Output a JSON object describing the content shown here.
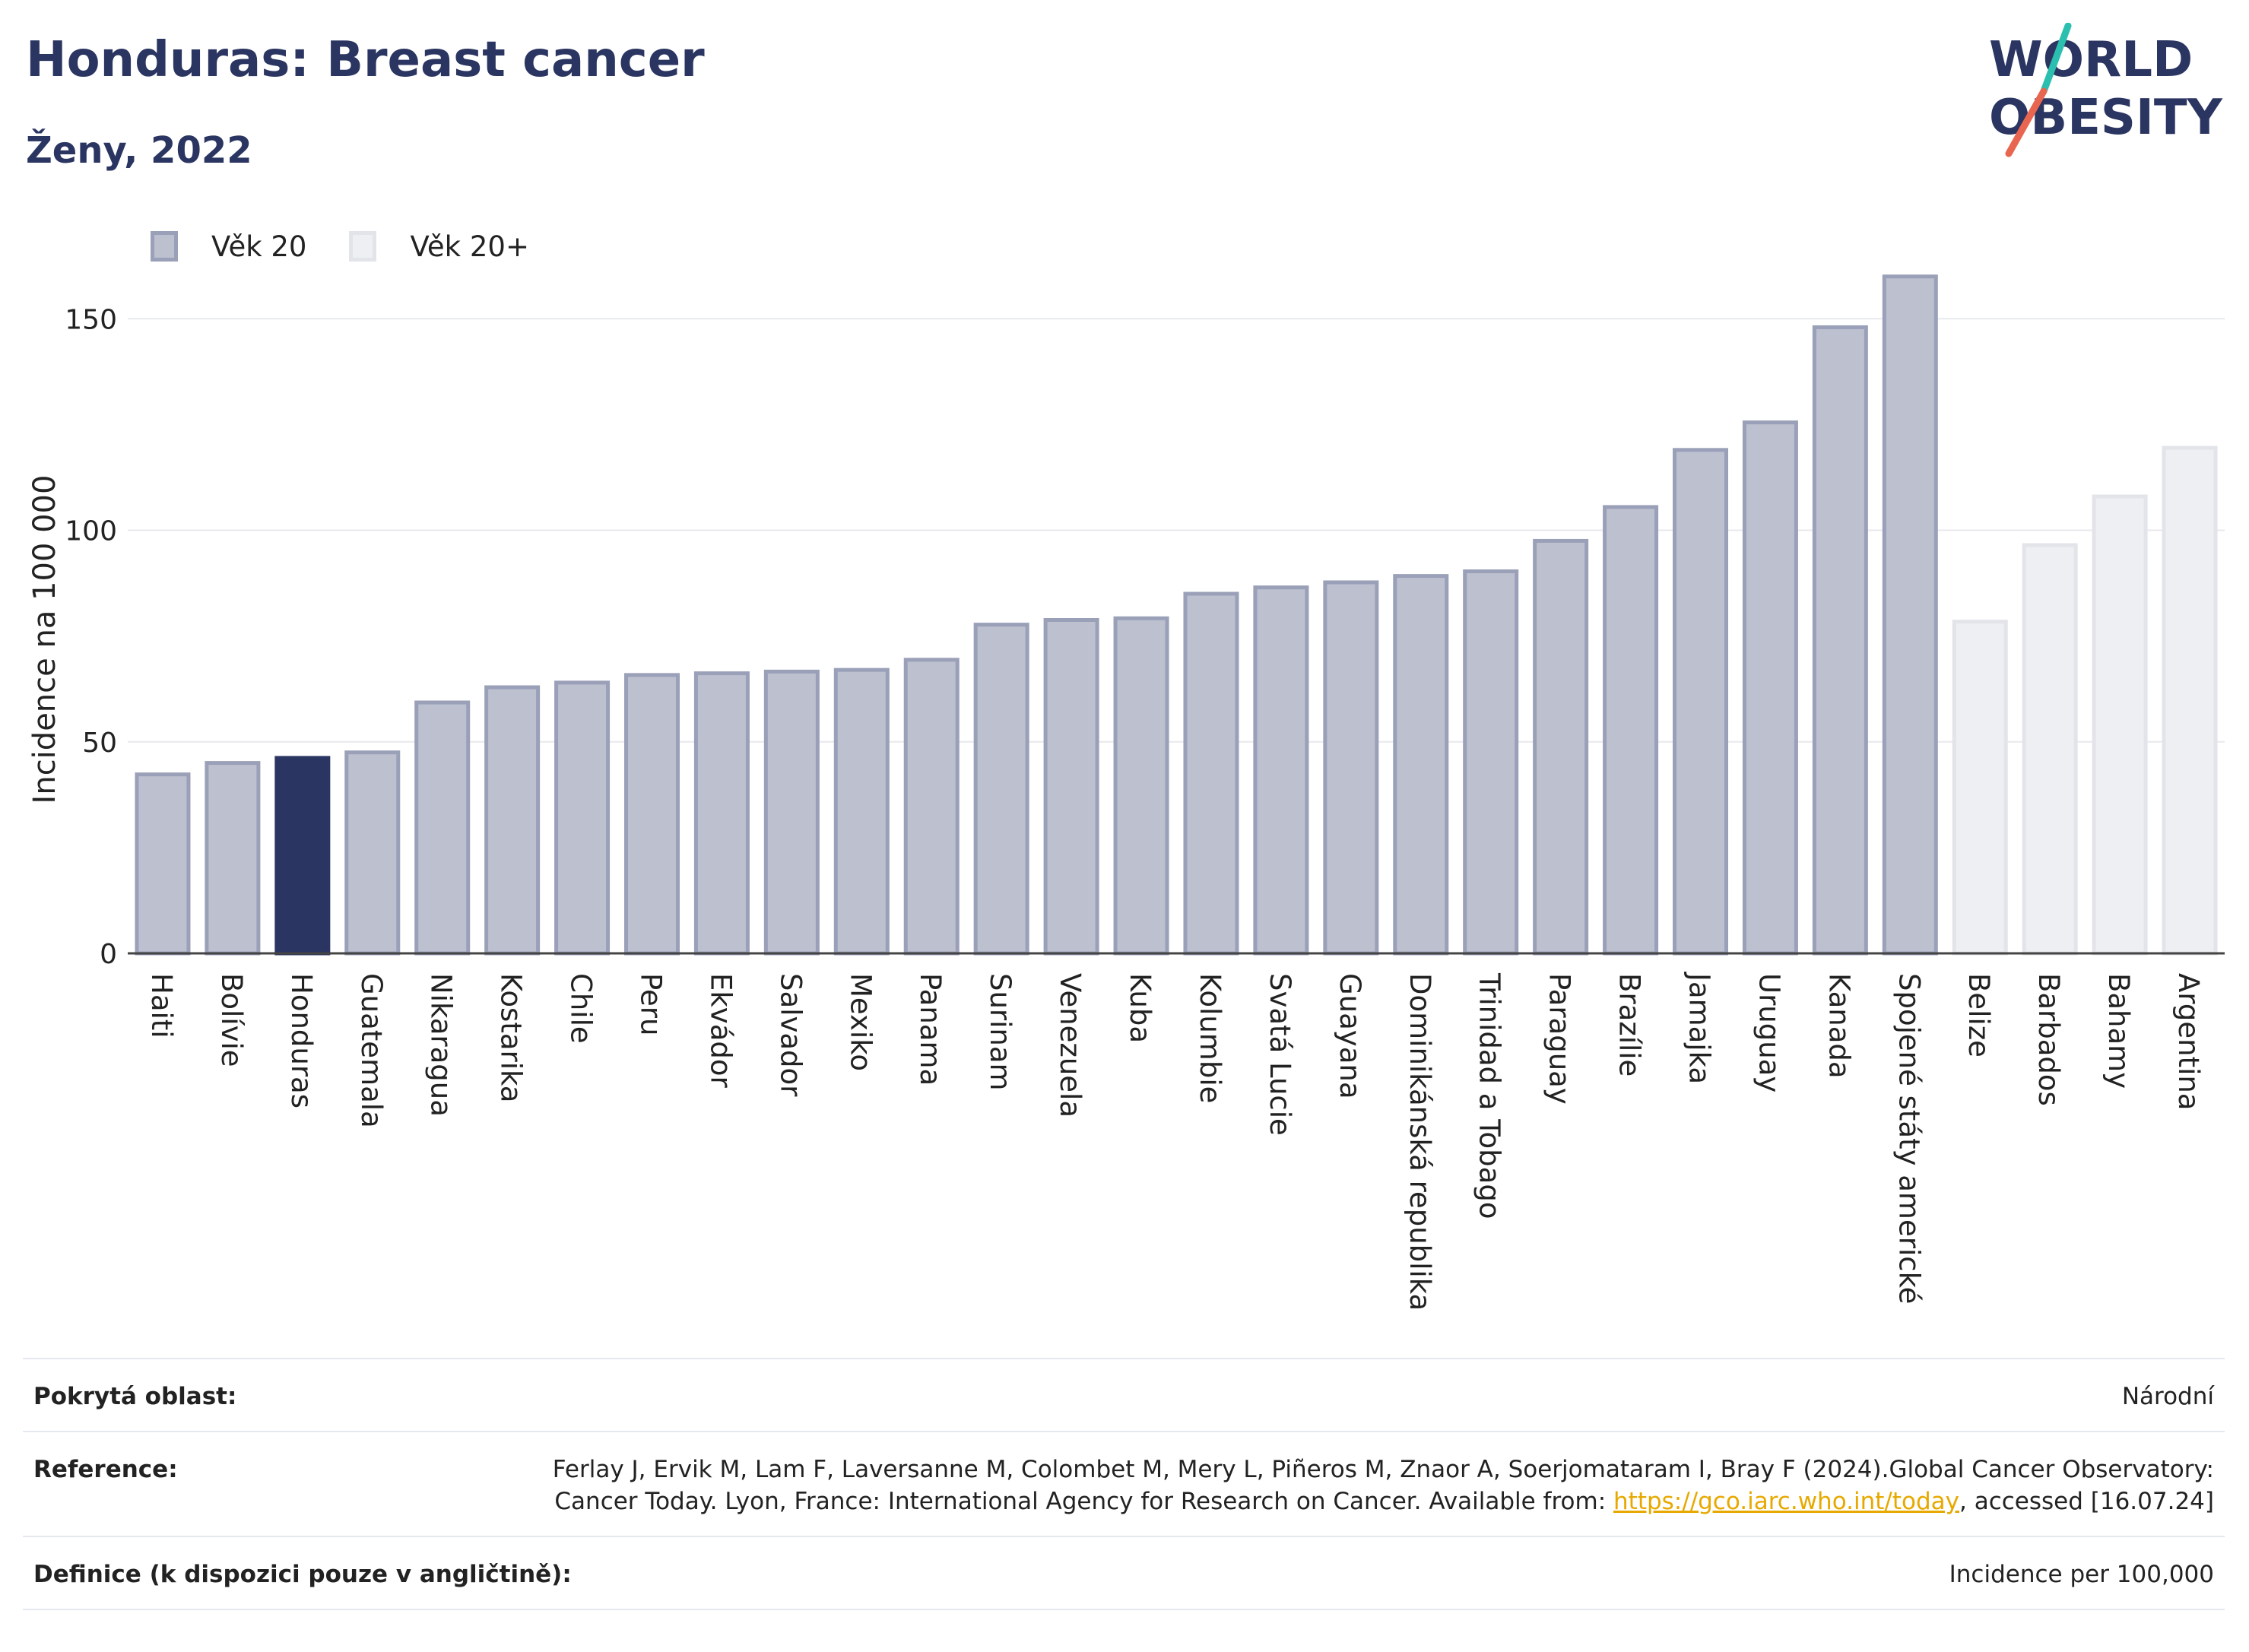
{
  "header": {
    "title": "Honduras: Breast cancer",
    "subtitle": "Ženy, 2022"
  },
  "logo": {
    "line1": "WORLD",
    "line2": "OBESITY",
    "accent_colors": [
      "#2bbfb0",
      "#e8664f"
    ]
  },
  "legend": {
    "items": [
      {
        "label": "Věk 20",
        "fill": "#bcc0cf",
        "stroke": "#9aa0b8"
      },
      {
        "label": "Věk 20+",
        "fill": "#eeeff3",
        "stroke": "#e3e4ea"
      }
    ]
  },
  "chart_data": {
    "type": "bar",
    "ylabel": "Incidence na 100 000",
    "xlabel": "",
    "ylim": [
      0,
      170
    ],
    "yticks": [
      0,
      50,
      100,
      150
    ],
    "grid": true,
    "legend_position": "top-left",
    "highlight": "Honduras",
    "categories": [
      "Haiti",
      "Bolívie",
      "Honduras",
      "Guatemala",
      "Nikaragua",
      "Kostarika",
      "Chile",
      "Peru",
      "Ekvádor",
      "Salvador",
      "Mexiko",
      "Panama",
      "Surinam",
      "Venezuela",
      "Kuba",
      "Kolumbie",
      "Svatá Lucie",
      "Guayana",
      "Dominikánská republika",
      "Trinidad a Tobago",
      "Paraguay",
      "Brazílie",
      "Jamajka",
      "Uruguay",
      "Kanada",
      "Spojené státy americké",
      "Belize",
      "Barbados",
      "Bahamy",
      "Argentina"
    ],
    "values": [
      42.3,
      45.0,
      46.2,
      47.5,
      59.3,
      62.9,
      64.0,
      65.8,
      66.2,
      66.6,
      67.0,
      69.4,
      77.7,
      78.8,
      79.2,
      85.0,
      86.5,
      87.7,
      89.2,
      90.3,
      97.5,
      105.5,
      119.0,
      125.5,
      148.0,
      160.0,
      78.4,
      96.5,
      108.0,
      119.5
    ],
    "age_group": [
      "Věk 20",
      "Věk 20",
      "Věk 20",
      "Věk 20",
      "Věk 20",
      "Věk 20",
      "Věk 20",
      "Věk 20",
      "Věk 20",
      "Věk 20",
      "Věk 20",
      "Věk 20",
      "Věk 20",
      "Věk 20",
      "Věk 20",
      "Věk 20",
      "Věk 20",
      "Věk 20",
      "Věk 20",
      "Věk 20",
      "Věk 20",
      "Věk 20",
      "Věk 20",
      "Věk 20",
      "Věk 20",
      "Věk 20",
      "Věk 20+",
      "Věk 20+",
      "Věk 20+",
      "Věk 20+"
    ],
    "colors": {
      "highlight_fill": "#2b3561",
      "group1_fill": "#bcc0cf",
      "group1_stroke": "#9aa0b8",
      "group2_fill": "#eeeff3",
      "group2_stroke": "#e3e4ea",
      "axis": "#444444",
      "grid": "#e8e9ee"
    }
  },
  "meta": {
    "coverage_label": "Pokrytá oblast:",
    "coverage_value": "Národní",
    "reference_label": "Reference:",
    "reference_text": "Ferlay J, Ervik M, Lam F, Laversanne M, Colombet M, Mery L, Piñeros M, Znaor A, Soerjomataram I, Bray F (2024).Global Cancer Observatory: Cancer Today. Lyon, France: International Agency for Research on Cancer. Available from:",
    "reference_link": "https://gco.iarc.who.int/today",
    "reference_suffix": ", accessed [16.07.24]",
    "definition_label": "Definice (k dispozici pouze v angličtině):",
    "definition_value": "Incidence per 100,000"
  }
}
